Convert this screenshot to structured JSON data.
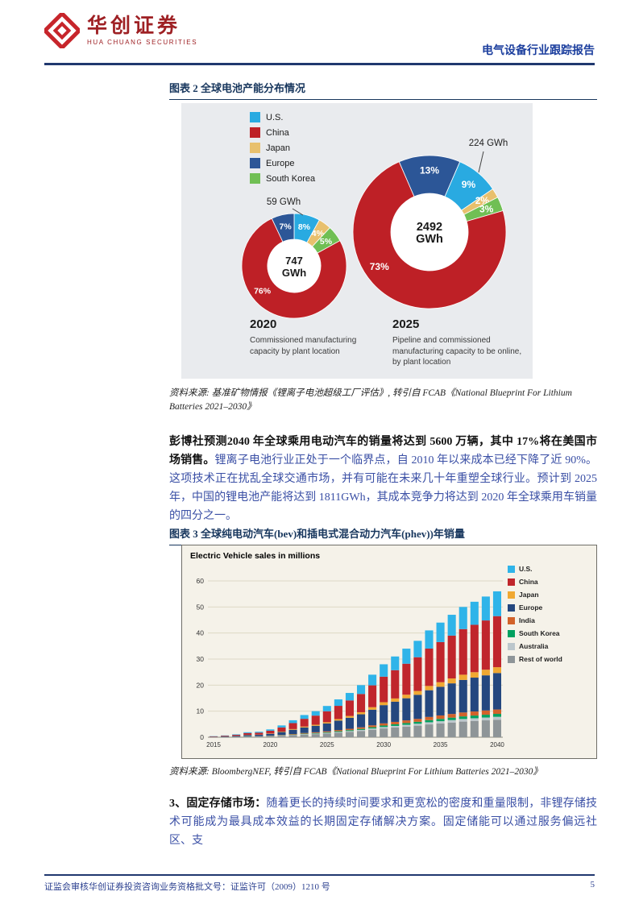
{
  "colors": {
    "brand_red": "#9e2024",
    "brand_mark_red": "#c7252b",
    "header_blue": "#1c3f9e",
    "rule_navy": "#20386f",
    "figure_title_navy": "#17365d",
    "body_text_blue": "#3a4fa5"
  },
  "header": {
    "brand_cn": "华创证券",
    "brand_en": "HUA CHUANG SECURITIES",
    "report_type": "电气设备行业跟踪报告"
  },
  "figure2": {
    "title": "图表 2 全球电池产能分布情况",
    "source": "资料来源: 基准矿物情报《锂离子电池超级工厂评估》, 转引自 FCAB《National Blueprint For Lithium Batteries 2021–2030》"
  },
  "figure3": {
    "title": "图表 3 全球纯电动汽车(bev)和插电式混合动力汽车(phev))年销量",
    "source": "资料来源: BloombergNEF, 转引自 FCAB《National Blueprint For Lithium Batteries 2021–2030》"
  },
  "paragraph1": {
    "bold": "彭博社预测2040 年全球乘用电动汽车的销量将达到 5600 万辆，其中 17%将在美国市场销售。",
    "rest": "锂离子电池行业正处于一个临界点，自 2010 年以来成本已经下降了近 90%。这项技术正在扰乱全球交通市场，并有可能在未来几十年重塑全球行业。预计到 2025 年，中国的锂电池产能将达到 1811GWh，其成本竞争力将达到 2020 年全球乘用车销量的四分之一。"
  },
  "paragraph2": {
    "bold": "3、固定存储市场：",
    "rest": "随着更长的持续时间要求和更宽松的密度和重量限制，非锂存储技术可能成为最具成本效益的长期固定存储解决方案。固定储能可以通过服务偏远社区、支"
  },
  "footer": {
    "license": "证监会审核华创证券投资咨询业务资格批文号：证监许可（2009）1210 号",
    "page_number": "5"
  },
  "chart_data": [
    {
      "type": "pie",
      "subtype": "donut-pair",
      "title": "全球电池产能分布情况",
      "legend": [
        "U.S.",
        "China",
        "Japan",
        "Europe",
        "South Korea"
      ],
      "colors": {
        "U.S.": "#29aae1",
        "China": "#be2026",
        "Japan": "#e8c06d",
        "Europe": "#2c5697",
        "South Korea": "#70bf54"
      },
      "pies": [
        {
          "year": "2020",
          "center_value": "747",
          "center_unit": "GWh",
          "callout": "59 GWh",
          "caption": "Commissioned manufacturing capacity by plant location",
          "start_angle": 0,
          "segments": [
            {
              "name": "U.S.",
              "pct": 8
            },
            {
              "name": "Japan",
              "pct": 4
            },
            {
              "name": "South Korea",
              "pct": 5
            },
            {
              "name": "China",
              "pct": 76,
              "label_angle": 232
            },
            {
              "name": "Europe",
              "pct": 7
            }
          ]
        },
        {
          "year": "2025",
          "center_value": "2492",
          "center_unit": "GWh",
          "callout": "224 GWh",
          "caption": "Pipeline and commissioned manufacturing capacity to be online, by plant location",
          "start_angle": -23.4,
          "segments": [
            {
              "name": "Europe",
              "pct": 13
            },
            {
              "name": "U.S.",
              "pct": 9
            },
            {
              "name": "Japan",
              "pct": 2
            },
            {
              "name": "South Korea",
              "pct": 3
            },
            {
              "name": "China",
              "pct": 73,
              "label_angle": 235
            }
          ]
        }
      ]
    },
    {
      "type": "bar",
      "stacked": true,
      "title": "Electric Vehicle sales in millions",
      "x": [
        2015,
        2016,
        2017,
        2018,
        2019,
        2020,
        2021,
        2022,
        2023,
        2024,
        2025,
        2026,
        2027,
        2028,
        2029,
        2030,
        2031,
        2032,
        2033,
        2034,
        2035,
        2036,
        2037,
        2038,
        2039,
        2040
      ],
      "ylim": [
        0,
        60
      ],
      "yticks": [
        0,
        10,
        20,
        30,
        40,
        50,
        60
      ],
      "xtick_every": 5,
      "legend_order": [
        "U.S.",
        "China",
        "Japan",
        "Europe",
        "India",
        "South Korea",
        "Australia",
        "Rest of world"
      ],
      "series": [
        {
          "name": "Rest of world",
          "color": "#8e9598",
          "values": [
            0.05,
            0.08,
            0.13,
            0.23,
            0.25,
            0.36,
            0.54,
            0.78,
            1.02,
            1.2,
            1.44,
            1.74,
            2.04,
            2.4,
            2.88,
            3.36,
            3.72,
            4.08,
            4.44,
            4.92,
            5.28,
            5.64,
            6.0,
            6.24,
            6.48,
            6.72
          ]
        },
        {
          "name": "Australia",
          "color": "#bcc7cc",
          "values": [
            0.01,
            0.01,
            0.02,
            0.04,
            0.04,
            0.06,
            0.09,
            0.13,
            0.17,
            0.2,
            0.24,
            0.29,
            0.34,
            0.4,
            0.48,
            0.56,
            0.62,
            0.68,
            0.74,
            0.82,
            0.88,
            0.94,
            1.0,
            1.04,
            1.08,
            1.12
          ]
        },
        {
          "name": "South Korea",
          "color": "#00a160",
          "values": [
            0.01,
            0.01,
            0.02,
            0.04,
            0.04,
            0.06,
            0.09,
            0.13,
            0.17,
            0.2,
            0.24,
            0.29,
            0.34,
            0.4,
            0.48,
            0.56,
            0.62,
            0.68,
            0.74,
            0.82,
            0.88,
            0.94,
            1.0,
            1.04,
            1.08,
            1.12
          ]
        },
        {
          "name": "India",
          "color": "#d2622a",
          "values": [
            0.01,
            0.02,
            0.03,
            0.06,
            0.06,
            0.09,
            0.14,
            0.2,
            0.26,
            0.3,
            0.36,
            0.44,
            0.51,
            0.6,
            0.72,
            0.84,
            0.93,
            1.02,
            1.11,
            1.23,
            1.32,
            1.41,
            1.5,
            1.56,
            1.62,
            1.68
          ]
        },
        {
          "name": "Europe",
          "color": "#24477f",
          "values": [
            0.1,
            0.18,
            0.28,
            0.48,
            0.53,
            0.75,
            1.13,
            1.63,
            2.13,
            2.5,
            3.0,
            3.63,
            4.25,
            5.0,
            6.0,
            7.0,
            7.75,
            8.5,
            9.25,
            10.25,
            11.0,
            11.75,
            12.5,
            13.0,
            13.5,
            14.0
          ]
        },
        {
          "name": "Japan",
          "color": "#f0a832",
          "values": [
            0.02,
            0.03,
            0.04,
            0.08,
            0.08,
            0.12,
            0.18,
            0.26,
            0.34,
            0.4,
            0.48,
            0.58,
            0.68,
            0.8,
            0.96,
            1.12,
            1.24,
            1.36,
            1.48,
            1.64,
            1.76,
            1.88,
            2.0,
            2.08,
            2.16,
            2.24
          ]
        },
        {
          "name": "China",
          "color": "#c0262c",
          "values": [
            0.14,
            0.25,
            0.39,
            0.67,
            0.74,
            1.05,
            1.58,
            2.28,
            2.98,
            3.5,
            4.2,
            5.08,
            5.95,
            7.0,
            8.4,
            9.8,
            10.85,
            11.9,
            12.95,
            14.35,
            15.4,
            16.45,
            17.5,
            18.2,
            18.9,
            19.6
          ]
        },
        {
          "name": "U.S.",
          "color": "#2fb4e9",
          "values": [
            0.07,
            0.12,
            0.19,
            0.32,
            0.36,
            0.51,
            0.77,
            1.11,
            1.45,
            1.7,
            2.04,
            2.47,
            2.89,
            3.4,
            4.08,
            4.76,
            5.27,
            5.78,
            6.29,
            6.97,
            7.48,
            7.99,
            8.5,
            8.84,
            9.18,
            9.52
          ]
        }
      ]
    }
  ]
}
